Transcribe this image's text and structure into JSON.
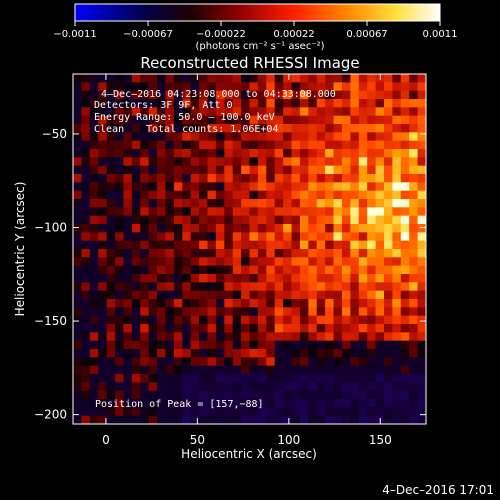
{
  "chart_data": {
    "type": "heatmap",
    "title": "Reconstructed RHESSI Image",
    "xlabel": "Heliocentric X (arcsec)",
    "ylabel": "Heliocentric Y (arcsec)",
    "xlim": [
      -18,
      175
    ],
    "ylim": [
      -205,
      -18
    ],
    "xticks": [
      0,
      50,
      100,
      150
    ],
    "yticks": [
      -50,
      -100,
      -150,
      -200
    ],
    "xtick_labels": [
      "0",
      "50",
      "100",
      "150"
    ],
    "ytick_labels": [
      "−50",
      "−100",
      "−150",
      "−200"
    ],
    "colorbar": {
      "min": -0.0011,
      "max": 0.0011,
      "tick_labels": [
        "−0.0011",
        "−0.00067",
        "−0.00022",
        "0.00022",
        "0.00067",
        "0.0011"
      ],
      "unit_label": "(photons cm⁻² s⁻¹ asec⁻²)",
      "colors": [
        "#0000ff",
        "#000000",
        "#800000",
        "#ff2000",
        "#ff9000",
        "#ffff60",
        "#ffffff"
      ]
    },
    "peak": [
      157,
      -88
    ],
    "annotations": {
      "time_range": "4–Dec–2016 04:23:08.000 to 04:33:08.000",
      "detectors": "Detectors: 3F 9F, Att 0",
      "energy": "Energy Range: 50.0 – 100.0 keV",
      "algorithm": "Clean",
      "counts": "Total counts: 1.06E+04",
      "peak_label": "Position of Peak = [157,−88]"
    },
    "timestamp": "4–Dec–2016 17:01"
  }
}
